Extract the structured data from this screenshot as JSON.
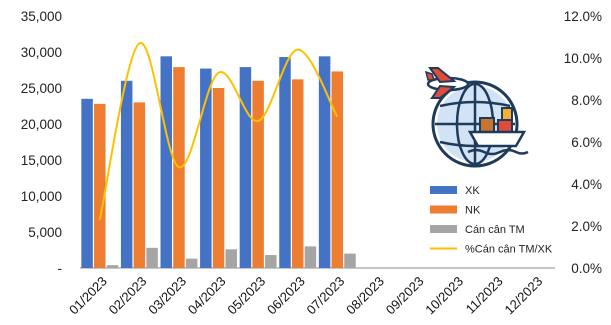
{
  "chart_data": {
    "type": "bar",
    "categories": [
      "01/2023",
      "02/2023",
      "03/2023",
      "04/2023",
      "05/2023",
      "06/2023",
      "07/2023",
      "08/2023",
      "09/2023",
      "10/2023",
      "11/2023",
      "12/2023"
    ],
    "series": [
      {
        "name": "XK",
        "type": "bar",
        "axis": "left",
        "color": "#4472C4",
        "values": [
          23500,
          26000,
          29400,
          27700,
          27900,
          29300,
          29400,
          null,
          null,
          null,
          null,
          null
        ]
      },
      {
        "name": "NK",
        "type": "bar",
        "axis": "left",
        "color": "#ED7D31",
        "values": [
          22800,
          23000,
          27900,
          25000,
          26000,
          26200,
          27300,
          null,
          null,
          null,
          null,
          null
        ]
      },
      {
        "name": "Cán cân TM",
        "type": "bar",
        "axis": "left",
        "color": "#A5A5A5",
        "values": [
          400,
          2800,
          1300,
          2600,
          1800,
          3000,
          2000,
          null,
          null,
          null,
          null,
          null
        ]
      },
      {
        "name": "%Cán cân TM/XK",
        "type": "line",
        "axis": "right",
        "color": "#FFC000",
        "values": [
          2.3,
          10.7,
          4.8,
          9.3,
          7.0,
          10.4,
          7.2,
          null,
          null,
          null,
          null,
          null
        ]
      }
    ],
    "left_axis": {
      "min": 0,
      "max": 35000,
      "ticks": [
        "-",
        "5,000",
        "10,000",
        "15,000",
        "20,000",
        "25,000",
        "30,000",
        "35,000"
      ]
    },
    "right_axis": {
      "min": 0,
      "max": 12,
      "ticks": [
        "0.0%",
        "2.0%",
        "4.0%",
        "6.0%",
        "8.0%",
        "10.0%",
        "12.0%"
      ]
    },
    "legend": {
      "placement": "right"
    },
    "grid": false,
    "icon": "logistics-globe-icon"
  }
}
